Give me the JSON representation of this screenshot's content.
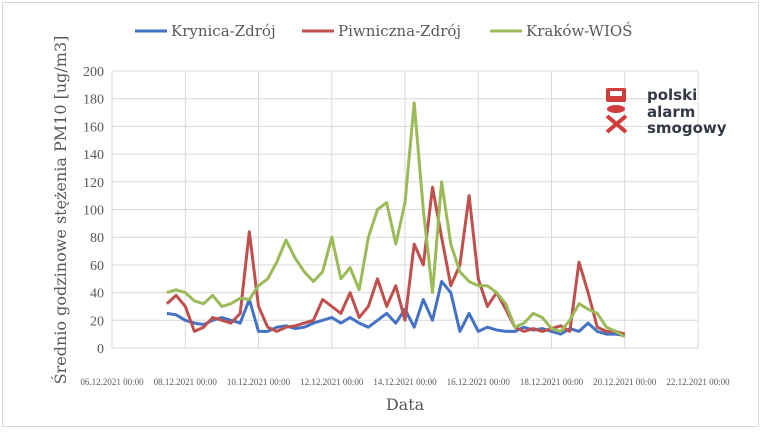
{
  "chart_data": {
    "type": "line",
    "title": "",
    "xlabel": "Data",
    "ylabel": "Średnio godzinowe stężenia PM10 [ug/m3]",
    "ylim": [
      0,
      200
    ],
    "yticks": [
      0,
      20,
      40,
      60,
      80,
      100,
      120,
      140,
      160,
      180,
      200
    ],
    "xlim": [
      "2021-12-06 00:00",
      "2021-12-22 00:00"
    ],
    "xtick_labels": [
      "06.12.2021 00:00",
      "08.12.2021 00:00",
      "10.12.2021 00:00",
      "12.12.2021 00:00",
      "14.12.2021 00:00",
      "16.12.2021 00:00",
      "18.12.2021 00:00",
      "20.12.2021 00:00",
      "22.12.2021 00:00"
    ],
    "grid": true,
    "legend_position": "top",
    "x_start": "2021-12-07 12:00",
    "x_step": "6h",
    "series": [
      {
        "name": "Krynica-Zdrój",
        "color": "#4472c4",
        "values": [
          25,
          24,
          20,
          18,
          17,
          20,
          22,
          20,
          18,
          35,
          12,
          12,
          15,
          16,
          14,
          15,
          18,
          20,
          22,
          18,
          22,
          18,
          15,
          20,
          25,
          18,
          28,
          15,
          35,
          20,
          48,
          40,
          12,
          25,
          12,
          15,
          13,
          12,
          12,
          15,
          13,
          14,
          12,
          10,
          14,
          12,
          18,
          12,
          10,
          10,
          9
        ]
      },
      {
        "name": "Piwniczna-Zdrój",
        "color": "#c0504d",
        "values": [
          32,
          38,
          30,
          12,
          15,
          22,
          20,
          18,
          25,
          84,
          30,
          15,
          12,
          15,
          16,
          18,
          20,
          35,
          30,
          25,
          40,
          22,
          30,
          50,
          30,
          45,
          20,
          75,
          60,
          116,
          80,
          45,
          60,
          110,
          50,
          30,
          40,
          28,
          15,
          12,
          14,
          12,
          14,
          16,
          12,
          62,
          40,
          15,
          12,
          12,
          10
        ]
      },
      {
        "name": "Kraków-WIOŚ",
        "color": "#9bbb59",
        "values": [
          40,
          42,
          40,
          34,
          32,
          38,
          30,
          32,
          36,
          35,
          45,
          50,
          62,
          78,
          65,
          55,
          48,
          55,
          80,
          50,
          58,
          42,
          80,
          100,
          105,
          75,
          105,
          177,
          100,
          40,
          120,
          75,
          55,
          48,
          45,
          45,
          40,
          32,
          15,
          18,
          25,
          22,
          14,
          12,
          20,
          32,
          28,
          25,
          15,
          12,
          8
        ]
      }
    ]
  },
  "logo": {
    "line1": "polski",
    "line2": "alarm",
    "line3": "smogowy"
  }
}
